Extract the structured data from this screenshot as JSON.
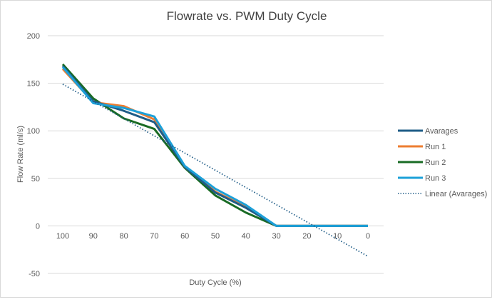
{
  "chart_data": {
    "type": "line",
    "title": "Flowrate vs. PWM Duty Cycle",
    "xlabel": "Duty Cycle (%)",
    "ylabel": "Flow Rate (ml/s)",
    "categories": [
      "100",
      "90",
      "80",
      "70",
      "60",
      "50",
      "40",
      "30",
      "20",
      "10",
      "0"
    ],
    "ylim": [
      -50,
      200
    ],
    "yticks": [
      200,
      150,
      100,
      50,
      0,
      -50
    ],
    "grid": true,
    "legend_position": "right",
    "series": [
      {
        "name": "Avarages",
        "color": "#1f5c87",
        "style": "solid",
        "values": [
          168,
          131,
          121,
          109,
          62,
          35,
          19,
          0,
          0,
          0,
          0
        ]
      },
      {
        "name": "Run 1",
        "color": "#ed7d31",
        "style": "solid",
        "values": [
          165,
          130,
          126,
          112,
          62,
          36,
          20,
          0,
          0,
          0,
          0
        ]
      },
      {
        "name": "Run 2",
        "color": "#196b24",
        "style": "solid",
        "values": [
          170,
          134,
          113,
          102,
          61,
          32,
          14,
          0,
          0,
          0,
          0
        ]
      },
      {
        "name": "Run 3",
        "color": "#1ca0d8",
        "style": "solid",
        "values": [
          167,
          129,
          124,
          115,
          63,
          39,
          22,
          0,
          0,
          0,
          0
        ]
      }
    ],
    "trendline": {
      "name": "Linear (Avarages)",
      "color": "#1f5c87",
      "style": "dotted",
      "start": 149,
      "end": -32
    }
  }
}
